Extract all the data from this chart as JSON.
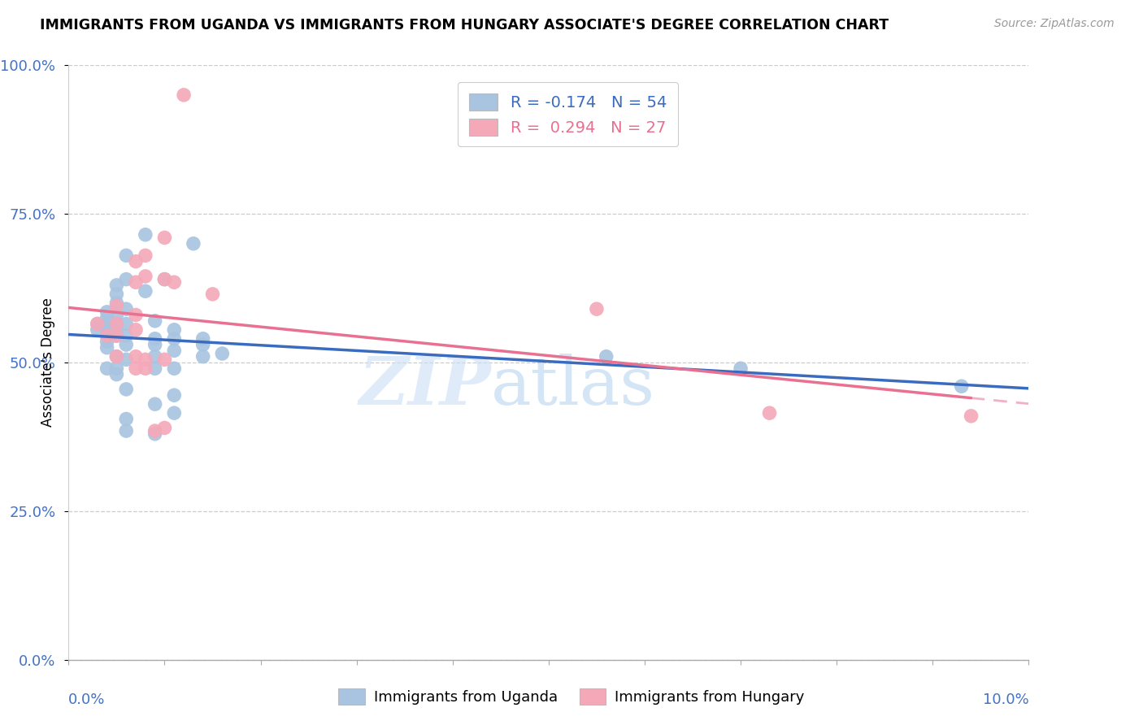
{
  "title": "IMMIGRANTS FROM UGANDA VS IMMIGRANTS FROM HUNGARY ASSOCIATE'S DEGREE CORRELATION CHART",
  "source": "Source: ZipAtlas.com",
  "ylabel": "Associate's Degree",
  "legend_uganda": "R = -0.174   N = 54",
  "legend_hungary": "R =  0.294   N = 27",
  "uganda_color": "#a8c4e0",
  "hungary_color": "#f4a8b8",
  "uganda_line_color": "#3a6bbf",
  "hungary_line_color": "#e87090",
  "uganda_points": [
    [
      0.003,
      0.565
    ],
    [
      0.003,
      0.555
    ],
    [
      0.004,
      0.585
    ],
    [
      0.004,
      0.575
    ],
    [
      0.004,
      0.565
    ],
    [
      0.004,
      0.555
    ],
    [
      0.004,
      0.545
    ],
    [
      0.004,
      0.535
    ],
    [
      0.004,
      0.525
    ],
    [
      0.004,
      0.49
    ],
    [
      0.005,
      0.63
    ],
    [
      0.005,
      0.615
    ],
    [
      0.005,
      0.6
    ],
    [
      0.005,
      0.58
    ],
    [
      0.005,
      0.565
    ],
    [
      0.005,
      0.555
    ],
    [
      0.005,
      0.545
    ],
    [
      0.005,
      0.51
    ],
    [
      0.005,
      0.49
    ],
    [
      0.005,
      0.48
    ],
    [
      0.006,
      0.68
    ],
    [
      0.006,
      0.64
    ],
    [
      0.006,
      0.59
    ],
    [
      0.006,
      0.565
    ],
    [
      0.006,
      0.545
    ],
    [
      0.006,
      0.53
    ],
    [
      0.006,
      0.505
    ],
    [
      0.006,
      0.455
    ],
    [
      0.006,
      0.405
    ],
    [
      0.006,
      0.385
    ],
    [
      0.008,
      0.715
    ],
    [
      0.008,
      0.62
    ],
    [
      0.009,
      0.57
    ],
    [
      0.009,
      0.54
    ],
    [
      0.009,
      0.53
    ],
    [
      0.009,
      0.51
    ],
    [
      0.009,
      0.49
    ],
    [
      0.009,
      0.43
    ],
    [
      0.009,
      0.38
    ],
    [
      0.01,
      0.64
    ],
    [
      0.011,
      0.555
    ],
    [
      0.011,
      0.54
    ],
    [
      0.011,
      0.52
    ],
    [
      0.011,
      0.49
    ],
    [
      0.011,
      0.445
    ],
    [
      0.011,
      0.415
    ],
    [
      0.013,
      0.7
    ],
    [
      0.014,
      0.54
    ],
    [
      0.014,
      0.53
    ],
    [
      0.014,
      0.51
    ],
    [
      0.016,
      0.515
    ],
    [
      0.056,
      0.51
    ],
    [
      0.07,
      0.49
    ],
    [
      0.093,
      0.46
    ]
  ],
  "hungary_points": [
    [
      0.003,
      0.565
    ],
    [
      0.004,
      0.545
    ],
    [
      0.005,
      0.595
    ],
    [
      0.005,
      0.565
    ],
    [
      0.005,
      0.545
    ],
    [
      0.005,
      0.51
    ],
    [
      0.007,
      0.67
    ],
    [
      0.007,
      0.635
    ],
    [
      0.007,
      0.58
    ],
    [
      0.007,
      0.555
    ],
    [
      0.007,
      0.51
    ],
    [
      0.007,
      0.49
    ],
    [
      0.008,
      0.68
    ],
    [
      0.008,
      0.645
    ],
    [
      0.008,
      0.505
    ],
    [
      0.008,
      0.49
    ],
    [
      0.009,
      0.385
    ],
    [
      0.01,
      0.71
    ],
    [
      0.01,
      0.64
    ],
    [
      0.01,
      0.505
    ],
    [
      0.01,
      0.39
    ],
    [
      0.011,
      0.635
    ],
    [
      0.012,
      0.95
    ],
    [
      0.015,
      0.615
    ],
    [
      0.055,
      0.59
    ],
    [
      0.073,
      0.415
    ],
    [
      0.094,
      0.41
    ]
  ],
  "xlim": [
    0,
    0.1
  ],
  "ylim": [
    0,
    1.0
  ],
  "yticks": [
    0.0,
    0.25,
    0.5,
    0.75,
    1.0
  ],
  "ytick_labels": [
    "0.0%",
    "25.0%",
    "50.0%",
    "75.0%",
    "100.0%"
  ]
}
